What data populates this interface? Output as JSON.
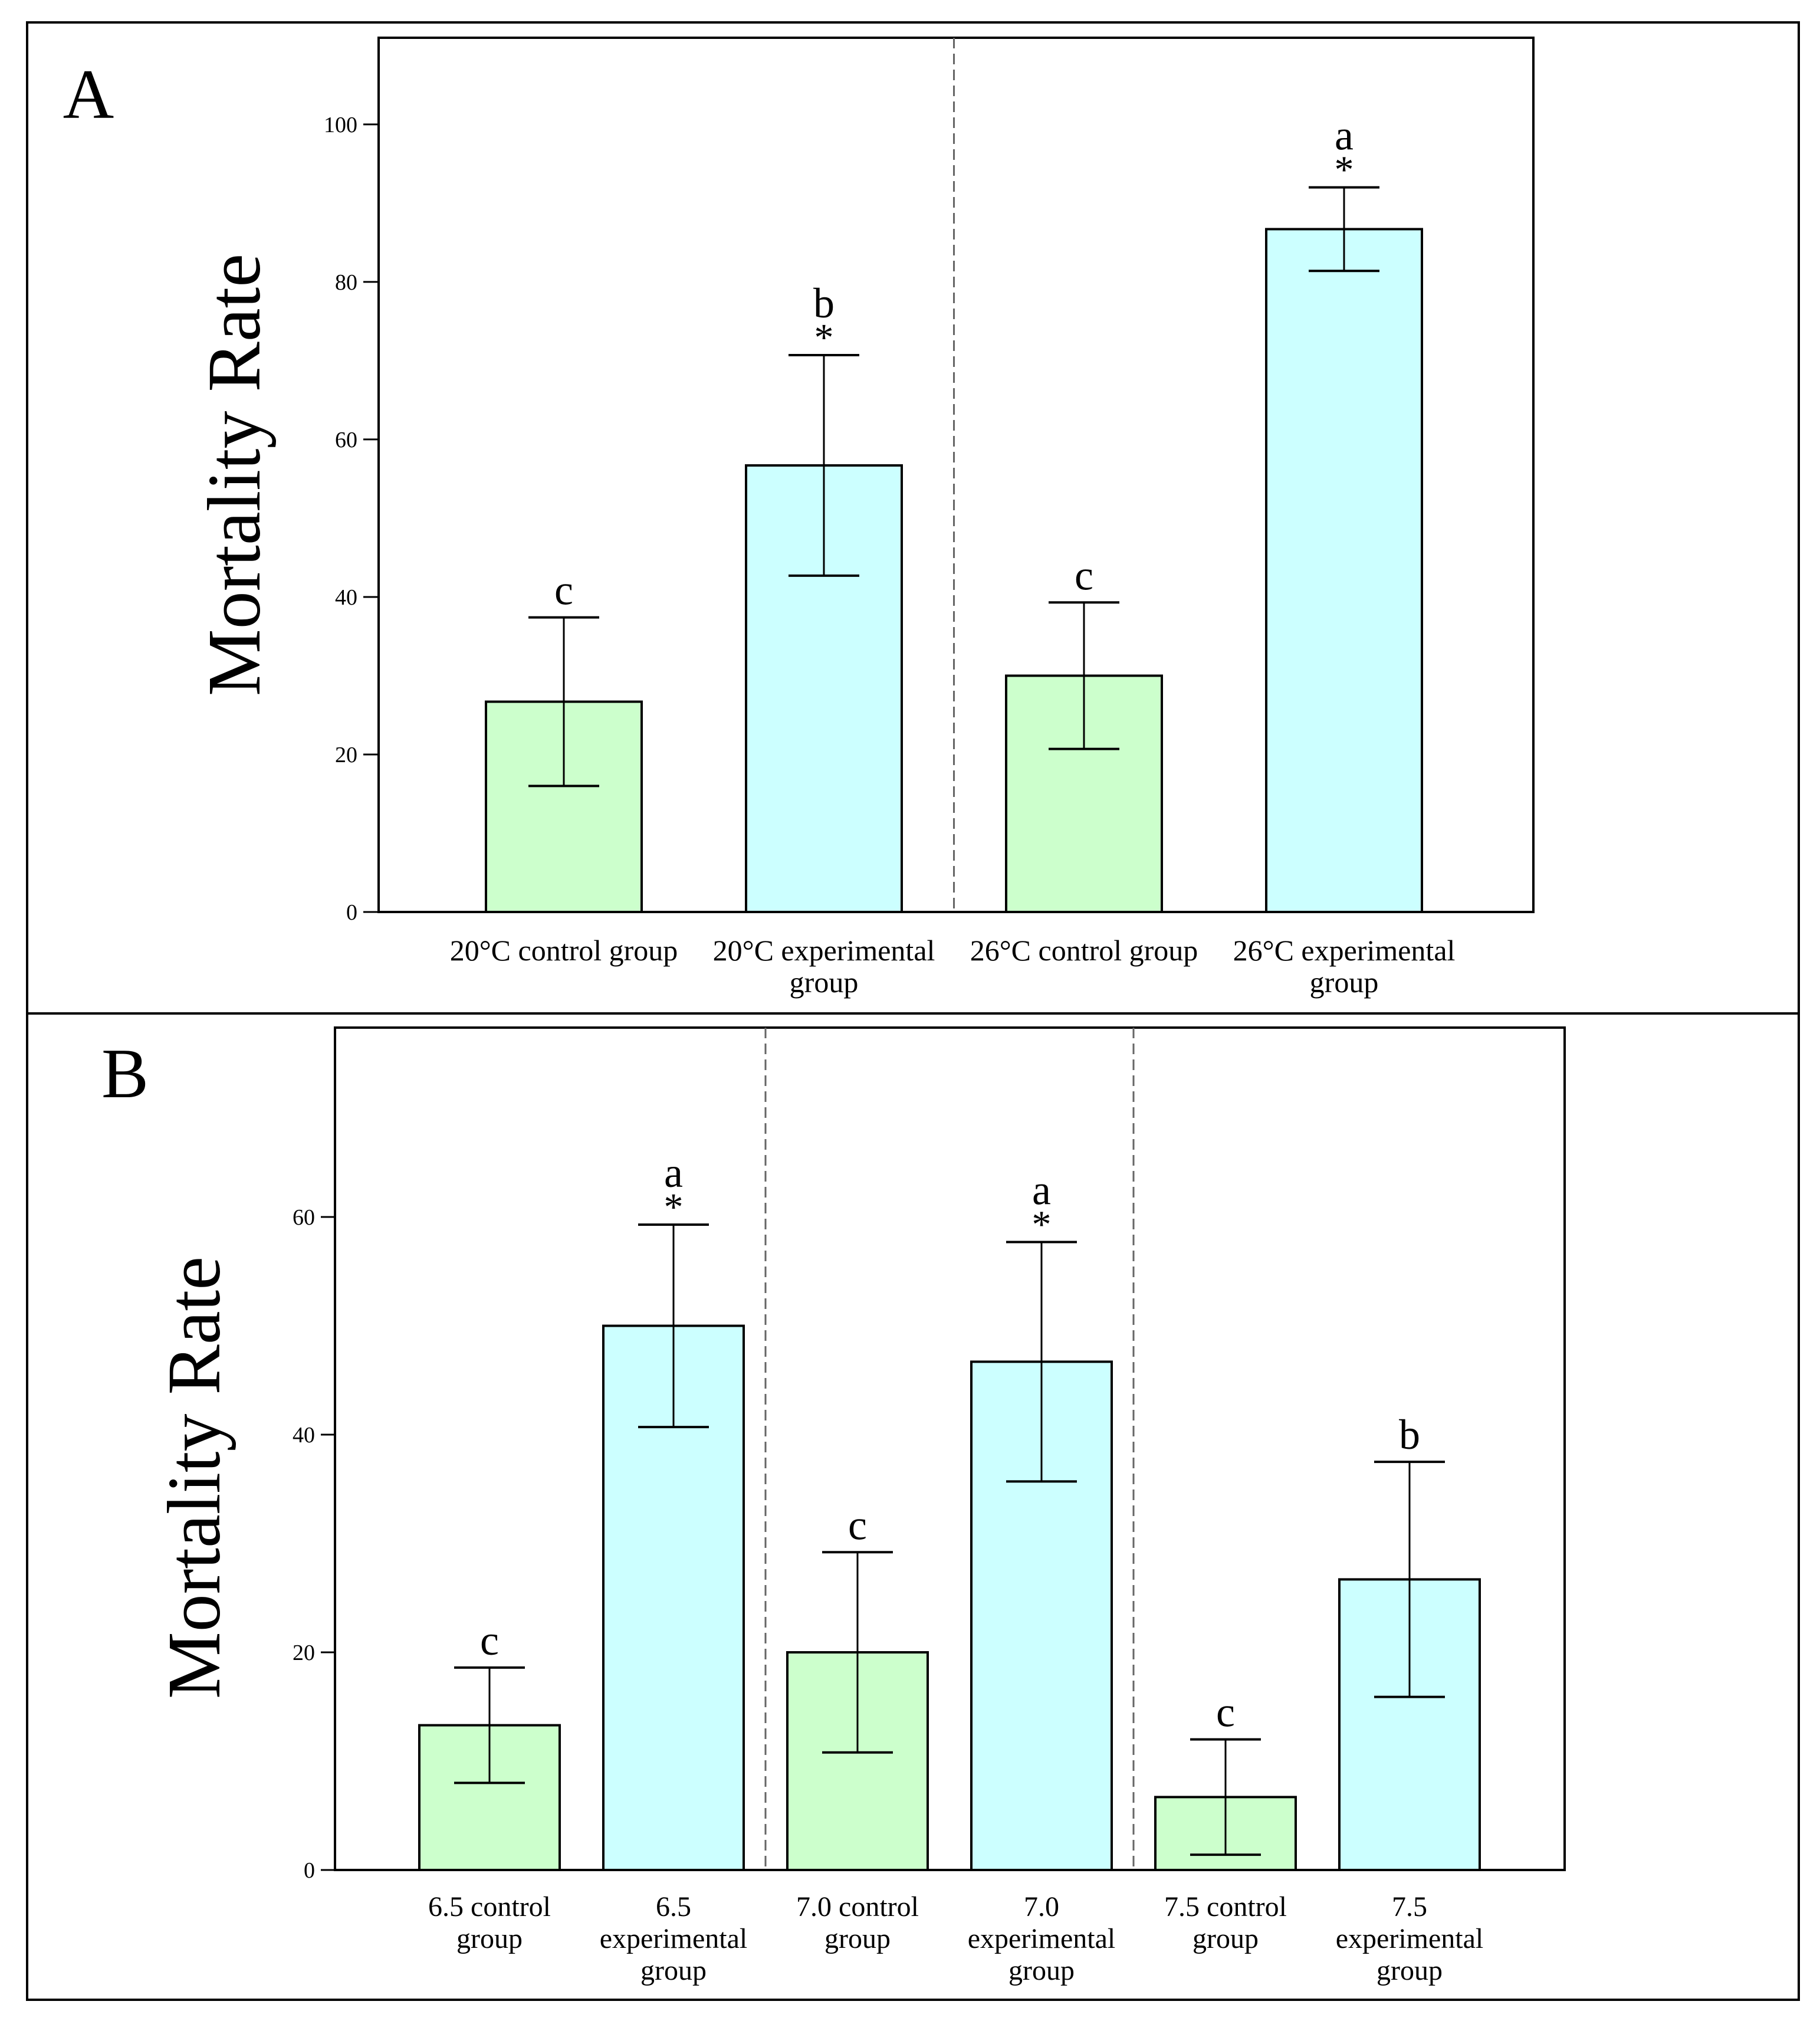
{
  "colors": {
    "control": "#ccffcc",
    "experimental": "#ccffff",
    "stroke": "#000000",
    "divider": "#666666"
  },
  "chart_data": [
    {
      "panel": "A",
      "type": "bar",
      "ylabel": "Mortality Rate",
      "ylim": [
        0,
        111
      ],
      "yticks": [
        0,
        20,
        40,
        60,
        80,
        100
      ],
      "categories": [
        [
          "20°C control group"
        ],
        [
          "20°C experimental",
          "group"
        ],
        [
          "26°C control group"
        ],
        [
          "26°C experimental",
          "group"
        ]
      ],
      "groups": [
        "control",
        "experimental",
        "control",
        "experimental"
      ],
      "values": [
        26.7,
        56.7,
        30.0,
        86.7
      ],
      "errors": [
        10.7,
        14.0,
        9.3,
        5.3
      ],
      "letters": [
        "c",
        "b",
        "c",
        "a"
      ],
      "stars": [
        false,
        true,
        false,
        true
      ],
      "dividers_after": [
        1
      ]
    },
    {
      "panel": "B",
      "type": "bar",
      "ylabel": "Mortality Rate",
      "ylim": [
        0,
        77.4
      ],
      "yticks": [
        0,
        20,
        40,
        60
      ],
      "categories": [
        [
          "6.5 control",
          "group"
        ],
        [
          "6.5",
          "experimental",
          "group"
        ],
        [
          "7.0 control",
          "group"
        ],
        [
          "7.0",
          "experimental",
          "group"
        ],
        [
          "7.5 control",
          "group"
        ],
        [
          "7.5",
          "experimental",
          "group"
        ]
      ],
      "groups": [
        "control",
        "experimental",
        "control",
        "experimental",
        "control",
        "experimental"
      ],
      "values": [
        13.3,
        50.0,
        20.0,
        46.7,
        6.7,
        26.7
      ],
      "errors": [
        5.3,
        9.3,
        9.2,
        11.0,
        5.3,
        10.8
      ],
      "letters": [
        "c",
        "a",
        "c",
        "a",
        "c",
        "b"
      ],
      "stars": [
        false,
        true,
        false,
        true,
        false,
        false
      ],
      "dividers_after": [
        1,
        3
      ]
    }
  ]
}
